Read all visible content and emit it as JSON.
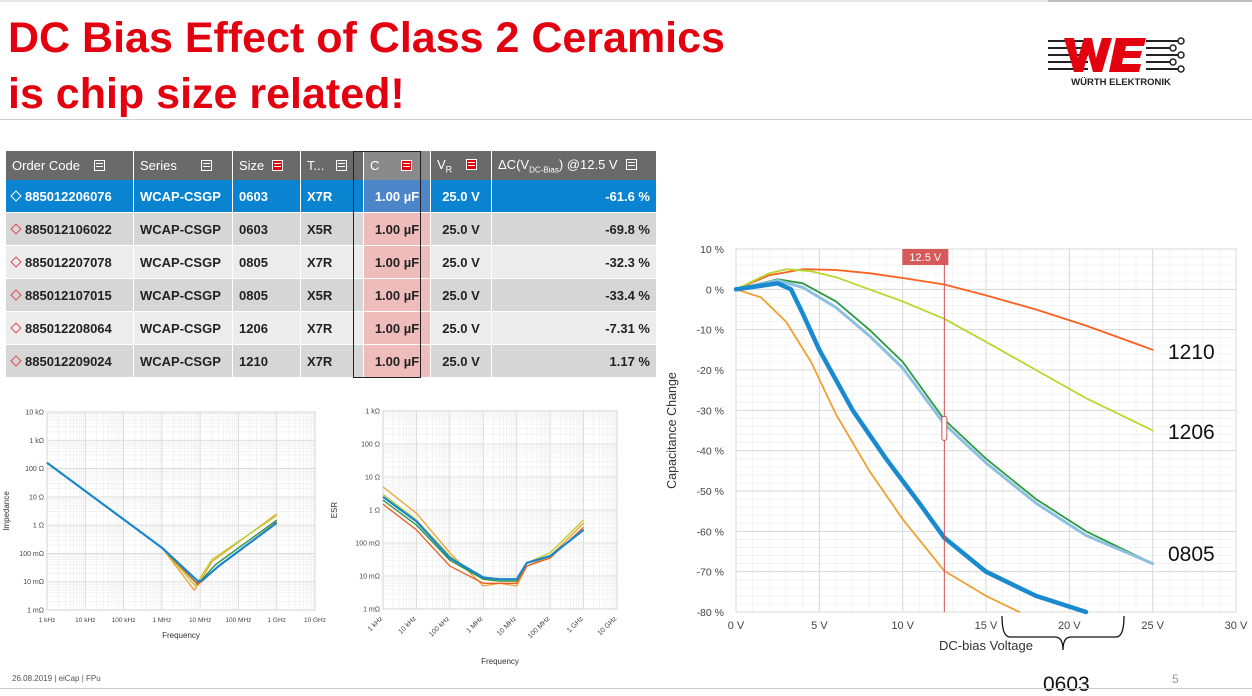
{
  "title_line1": "DC Bias Effect of Class 2 Ceramics",
  "title_line2": "is chip size related!",
  "logo_text": "WÜRTH ELEKTRONIK",
  "table": {
    "headers": {
      "order_code": "Order Code",
      "series": "Series",
      "size": "Size",
      "type": "T...",
      "cap": "C",
      "vr_main": "V",
      "vr_sub": "R",
      "dc_pre": "ΔC(V",
      "dc_sub": "DC-Bias",
      "dc_post": ") @12.5 V"
    },
    "rows": [
      {
        "order_code": "885012206076",
        "series": "WCAP-CSGP",
        "size": "0603",
        "type": "X7R",
        "cap": "1.00 µF",
        "vr": "25.0 V",
        "dc": "-61.6 %"
      },
      {
        "order_code": "885012106022",
        "series": "WCAP-CSGP",
        "size": "0603",
        "type": "X5R",
        "cap": "1.00 µF",
        "vr": "25.0 V",
        "dc": "-69.8 %"
      },
      {
        "order_code": "885012207078",
        "series": "WCAP-CSGP",
        "size": "0805",
        "type": "X7R",
        "cap": "1.00 µF",
        "vr": "25.0 V",
        "dc": "-32.3 %"
      },
      {
        "order_code": "885012107015",
        "series": "WCAP-CSGP",
        "size": "0805",
        "type": "X5R",
        "cap": "1.00 µF",
        "vr": "25.0 V",
        "dc": "-33.4 %"
      },
      {
        "order_code": "885012208064",
        "series": "WCAP-CSGP",
        "size": "1206",
        "type": "X7R",
        "cap": "1.00 µF",
        "vr": "25.0 V",
        "dc": "-7.31 %"
      },
      {
        "order_code": "885012209024",
        "series": "WCAP-CSGP",
        "size": "1210",
        "type": "X7R",
        "cap": "1.00 µF",
        "vr": "25.0 V",
        "dc": "1.17 %"
      }
    ]
  },
  "chart_data": [
    {
      "type": "line",
      "title": "",
      "xlabel": "Frequency",
      "ylabel": "Impedance",
      "x_scale": "log",
      "y_scale": "log",
      "xlim": [
        1000,
        10000000000
      ],
      "ylim": [
        0.001,
        10000
      ],
      "x_ticks": [
        "1 kHz",
        "10 kHz",
        "100 kHz",
        "1 MHz",
        "10 MHz",
        "100 MHz",
        "1 GHz",
        "10 GHz"
      ],
      "y_ticks": [
        "1 mΩ",
        "10 mΩ",
        "100 mΩ",
        "1 Ω",
        "10 Ω",
        "100 Ω",
        "1 kΩ",
        "10 kΩ"
      ],
      "grid": true,
      "series": [
        {
          "color": "#f0a030",
          "points": [
            [
              1000,
              160
            ],
            [
              1000000,
              0.16
            ],
            [
              7000000,
              0.005
            ],
            [
              9000000,
              0.008
            ],
            [
              20000000,
              0.05
            ],
            [
              1000000000,
              2.5
            ]
          ]
        },
        {
          "color": "#b8d030",
          "points": [
            [
              1000,
              160
            ],
            [
              1000000,
              0.16
            ],
            [
              7500000,
              0.007
            ],
            [
              9500000,
              0.012
            ],
            [
              20000000,
              0.06
            ],
            [
              1000000000,
              2.2
            ]
          ]
        },
        {
          "color": "#2a9040",
          "points": [
            [
              1000,
              160
            ],
            [
              1000000,
              0.16
            ],
            [
              8000000,
              0.009
            ],
            [
              10000000,
              0.01
            ],
            [
              25000000,
              0.04
            ],
            [
              1000000000,
              1.5
            ]
          ]
        },
        {
          "color": "#e86020",
          "points": [
            [
              1000,
              160
            ],
            [
              1000000,
              0.16
            ],
            [
              8500000,
              0.008
            ],
            [
              11000000,
              0.01
            ],
            [
              30000000,
              0.035
            ],
            [
              1000000000,
              1.3
            ]
          ]
        },
        {
          "color": "#90b8d8",
          "points": [
            [
              1000,
              160
            ],
            [
              1000000,
              0.16
            ],
            [
              9000000,
              0.01
            ],
            [
              12000000,
              0.012
            ],
            [
              30000000,
              0.035
            ],
            [
              1000000000,
              1.2
            ]
          ]
        },
        {
          "color": "#1a86cc",
          "points": [
            [
              1000,
              160
            ],
            [
              1000000,
              0.16
            ],
            [
              9000000,
              0.01
            ],
            [
              12000000,
              0.012
            ],
            [
              30000000,
              0.035
            ],
            [
              1000000000,
              1.2
            ]
          ]
        }
      ]
    },
    {
      "type": "line",
      "title": "",
      "xlabel": "Frequency",
      "ylabel": "ESR",
      "x_scale": "log",
      "y_scale": "log",
      "xlim": [
        1000,
        10000000000
      ],
      "ylim": [
        0.001,
        1000
      ],
      "x_ticks": [
        "1 kHz",
        "10 kHz",
        "100 kHz",
        "1 MHz",
        "10 MHz",
        "100 MHz",
        "1 GHz",
        "10 GHz"
      ],
      "y_ticks": [
        "1 mΩ",
        "10 mΩ",
        "100 mΩ",
        "1 Ω",
        "10 Ω",
        "100 Ω",
        "1 kΩ"
      ],
      "grid": true,
      "series": [
        {
          "color": "#f0a030",
          "points": [
            [
              1000,
              5
            ],
            [
              10000,
              0.8
            ],
            [
              100000,
              0.05
            ],
            [
              1000000,
              0.005
            ],
            [
              3000000,
              0.006
            ],
            [
              10000000,
              0.005
            ],
            [
              20000000,
              0.02
            ],
            [
              100000000,
              0.04
            ],
            [
              1000000000,
              0.4
            ]
          ]
        },
        {
          "color": "#b8d030",
          "points": [
            [
              1000,
              3
            ],
            [
              10000,
              0.5
            ],
            [
              100000,
              0.04
            ],
            [
              1000000,
              0.008
            ],
            [
              3000000,
              0.008
            ],
            [
              10000000,
              0.007
            ],
            [
              20000000,
              0.025
            ],
            [
              100000000,
              0.05
            ],
            [
              1000000000,
              0.5
            ]
          ]
        },
        {
          "color": "#e86020",
          "points": [
            [
              1000,
              1.5
            ],
            [
              10000,
              0.25
            ],
            [
              100000,
              0.02
            ],
            [
              1000000,
              0.006
            ],
            [
              3000000,
              0.006
            ],
            [
              10000000,
              0.006
            ],
            [
              20000000,
              0.02
            ],
            [
              100000000,
              0.035
            ],
            [
              1000000000,
              0.3
            ]
          ]
        },
        {
          "color": "#2a9040",
          "points": [
            [
              1000,
              2
            ],
            [
              10000,
              0.35
            ],
            [
              100000,
              0.03
            ],
            [
              1000000,
              0.008
            ],
            [
              3000000,
              0.007
            ],
            [
              10000000,
              0.007
            ],
            [
              20000000,
              0.025
            ],
            [
              100000000,
              0.04
            ],
            [
              1000000000,
              0.25
            ]
          ]
        },
        {
          "color": "#1a86cc",
          "points": [
            [
              1000,
              2.5
            ],
            [
              10000,
              0.45
            ],
            [
              100000,
              0.035
            ],
            [
              1000000,
              0.009
            ],
            [
              3000000,
              0.008
            ],
            [
              10000000,
              0.008
            ],
            [
              20000000,
              0.025
            ],
            [
              100000000,
              0.04
            ],
            [
              1000000000,
              0.25
            ]
          ]
        }
      ]
    },
    {
      "type": "line",
      "title": "",
      "xlabel": "DC-bias Voltage",
      "ylabel": "Capacitance Change",
      "x_unit": "V",
      "xlim": [
        0,
        30
      ],
      "ylim": [
        -80,
        10
      ],
      "x_ticks": [
        0,
        5,
        10,
        15,
        20,
        25,
        30
      ],
      "y_ticks": [
        10,
        0,
        -10,
        -20,
        -30,
        -40,
        -50,
        -60,
        -70,
        -80
      ],
      "grid": true,
      "marker": {
        "x": 12.5,
        "label": "12.5 V"
      },
      "annotations": [
        "1210",
        "1206",
        "0805",
        "0603"
      ],
      "series": [
        {
          "size": "1210",
          "color": "#ff6020",
          "points": [
            [
              0,
              0
            ],
            [
              2,
              3.5
            ],
            [
              4,
              5
            ],
            [
              6,
              4.8
            ],
            [
              8,
              4
            ],
            [
              10,
              2.8
            ],
            [
              12.5,
              1.2
            ],
            [
              15,
              -1.5
            ],
            [
              18,
              -5
            ],
            [
              21,
              -9
            ],
            [
              25,
              -15
            ]
          ]
        },
        {
          "size": "1206",
          "color": "#b8d830",
          "points": [
            [
              0,
              0
            ],
            [
              2,
              4
            ],
            [
              3,
              5
            ],
            [
              4.5,
              4.5
            ],
            [
              6,
              3
            ],
            [
              8,
              0
            ],
            [
              10,
              -3
            ],
            [
              12.5,
              -7.3
            ],
            [
              15,
              -13
            ],
            [
              18,
              -20
            ],
            [
              21,
              -27
            ],
            [
              25,
              -35
            ]
          ]
        },
        {
          "size": "0805",
          "color": "#2a9a40",
          "points": [
            [
              0,
              0
            ],
            [
              2.5,
              2.5
            ],
            [
              4,
              1.5
            ],
            [
              6,
              -3
            ],
            [
              8,
              -10
            ],
            [
              10,
              -18
            ],
            [
              12.5,
              -32.3
            ],
            [
              15,
              -42
            ],
            [
              18,
              -52
            ],
            [
              21,
              -60
            ],
            [
              25,
              -68
            ]
          ]
        },
        {
          "size": "0805",
          "color": "#8ec0e0",
          "points": [
            [
              0,
              0
            ],
            [
              2.5,
              2.2
            ],
            [
              4,
              0.5
            ],
            [
              6,
              -4.5
            ],
            [
              8,
              -11.5
            ],
            [
              10,
              -19.5
            ],
            [
              12.5,
              -33.4
            ],
            [
              15,
              -43
            ],
            [
              18,
              -53
            ],
            [
              21,
              -61
            ],
            [
              25,
              -68
            ]
          ]
        },
        {
          "size": "0603",
          "color": "#f0a030",
          "points": [
            [
              0,
              0
            ],
            [
              1.5,
              -2
            ],
            [
              3,
              -8
            ],
            [
              4.5,
              -18
            ],
            [
              6,
              -31
            ],
            [
              8,
              -45
            ],
            [
              10,
              -57
            ],
            [
              12.5,
              -69.8
            ],
            [
              15,
              -76
            ],
            [
              17,
              -80
            ]
          ]
        },
        {
          "size": "0603",
          "color": "#1a8ad0",
          "points": [
            [
              0,
              0
            ],
            [
              2.5,
              1.5
            ],
            [
              3.3,
              0
            ],
            [
              4,
              -6
            ],
            [
              5,
              -15
            ],
            [
              7,
              -30
            ],
            [
              9,
              -42
            ],
            [
              11,
              -53
            ],
            [
              12.5,
              -61.6
            ],
            [
              15,
              -70
            ],
            [
              18,
              -76
            ],
            [
              21,
              -80
            ]
          ]
        }
      ]
    }
  ],
  "footer": "26.08.2019  |  eiCap  |  FPu",
  "page_number": "5"
}
